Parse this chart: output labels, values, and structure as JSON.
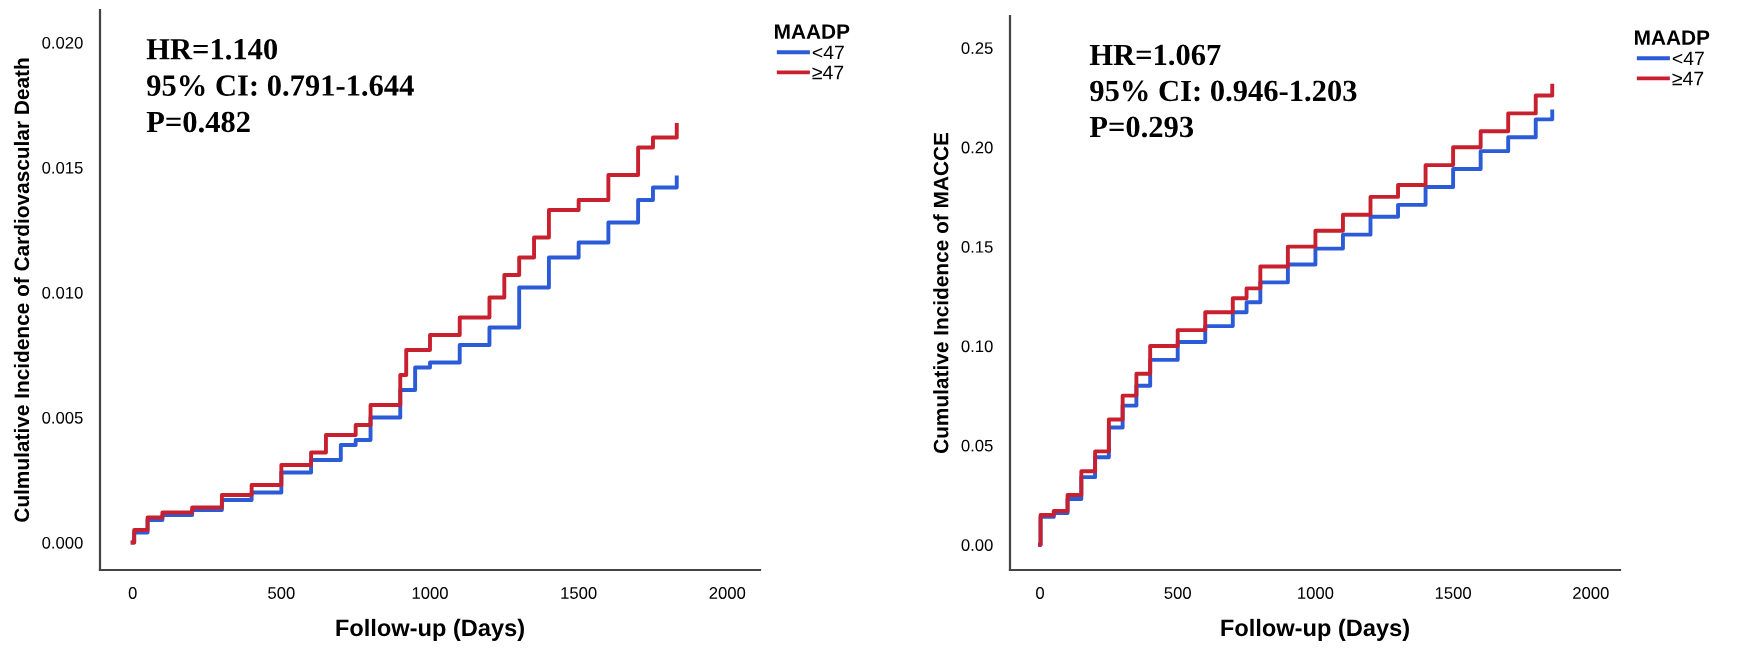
{
  "chart_data": [
    {
      "type": "step",
      "xlabel": "Follow-up (Days)",
      "ylabel": "Culmulative Incidence of Cardiovascular Death",
      "legend_title": "MAADP",
      "legend": "top right",
      "grid": false,
      "annotations": [
        "HR=1.140",
        "95% CI: 0.791-1.644",
        "P=0.482"
      ],
      "xlim": [
        -110,
        2110
      ],
      "xticks": [
        0,
        500,
        1000,
        1500,
        2000
      ],
      "ylim": [
        -0.0011,
        0.0213
      ],
      "yticks": [
        {
          "value": 0,
          "label": "0.000"
        },
        {
          "value": 0.005,
          "label": "0.005"
        },
        {
          "value": 0.01,
          "label": "0.010"
        },
        {
          "value": 0.015,
          "label": "0.015"
        },
        {
          "value": 0.02,
          "label": "0.020"
        }
      ],
      "series": [
        {
          "name": "<47",
          "color": "#2b5bd7",
          "x": [
            0,
            5,
            50,
            100,
            200,
            300,
            400,
            500,
            600,
            700,
            750,
            800,
            900,
            950,
            1000,
            1100,
            1200,
            1300,
            1400,
            1500,
            1600,
            1700,
            1750,
            1830
          ],
          "values": [
            0,
            0.0004,
            0.0009,
            0.0011,
            0.0013,
            0.0017,
            0.002,
            0.0028,
            0.0033,
            0.0039,
            0.0041,
            0.005,
            0.0061,
            0.007,
            0.0072,
            0.0079,
            0.0086,
            0.0102,
            0.0114,
            0.012,
            0.0128,
            0.0137,
            0.0142,
            0.0146
          ]
        },
        {
          "name": "≥47",
          "color": "#c8202f",
          "x": [
            0,
            5,
            50,
            100,
            200,
            300,
            400,
            500,
            600,
            650,
            750,
            800,
            900,
            920,
            1000,
            1100,
            1200,
            1250,
            1300,
            1350,
            1400,
            1500,
            1600,
            1700,
            1750,
            1830
          ],
          "values": [
            0,
            0.0005,
            0.001,
            0.0012,
            0.0014,
            0.0019,
            0.0023,
            0.0031,
            0.0036,
            0.0043,
            0.0047,
            0.0055,
            0.0067,
            0.0077,
            0.0083,
            0.009,
            0.0098,
            0.0107,
            0.0114,
            0.0122,
            0.0133,
            0.0137,
            0.0147,
            0.0158,
            0.0162,
            0.0167
          ]
        }
      ]
    },
    {
      "type": "step",
      "xlabel": "Follow-up (Days)",
      "ylabel": "Cumulative Incidence of MACCE",
      "legend_title": "MAADP",
      "legend": "top right",
      "grid": false,
      "annotations": [
        "HR=1.067",
        "95% CI: 0.946-1.203",
        "P=0.293"
      ],
      "xlim": [
        -109,
        2106
      ],
      "xticks": [
        0,
        500,
        1000,
        1500,
        2000
      ],
      "ylim": [
        -0.0127,
        0.266
      ],
      "yticks": [
        {
          "value": 0,
          "label": "0.00"
        },
        {
          "value": 0.05,
          "label": "0.05"
        },
        {
          "value": 0.1,
          "label": "0.10"
        },
        {
          "value": 0.15,
          "label": "0.15"
        },
        {
          "value": 0.2,
          "label": "0.20"
        },
        {
          "value": 0.25,
          "label": "0.25"
        }
      ],
      "series": [
        {
          "name": "<47",
          "color": "#2b5bd7",
          "x": [
            0,
            2,
            50,
            100,
            150,
            200,
            250,
            300,
            350,
            400,
            500,
            600,
            700,
            750,
            800,
            900,
            1000,
            1100,
            1200,
            1300,
            1400,
            1500,
            1600,
            1700,
            1800,
            1860
          ],
          "values": [
            0,
            0.014,
            0.016,
            0.023,
            0.034,
            0.044,
            0.059,
            0.07,
            0.08,
            0.093,
            0.102,
            0.11,
            0.117,
            0.122,
            0.132,
            0.141,
            0.149,
            0.156,
            0.165,
            0.171,
            0.18,
            0.189,
            0.198,
            0.205,
            0.214,
            0.218
          ]
        },
        {
          "name": "≥47",
          "color": "#c8202f",
          "x": [
            0,
            2,
            50,
            100,
            150,
            200,
            250,
            300,
            350,
            400,
            500,
            600,
            700,
            750,
            800,
            900,
            1000,
            1100,
            1200,
            1300,
            1400,
            1500,
            1600,
            1700,
            1800,
            1860
          ],
          "values": [
            0,
            0.015,
            0.017,
            0.025,
            0.037,
            0.047,
            0.063,
            0.075,
            0.086,
            0.1,
            0.108,
            0.117,
            0.124,
            0.129,
            0.14,
            0.15,
            0.158,
            0.166,
            0.175,
            0.181,
            0.191,
            0.2,
            0.208,
            0.217,
            0.226,
            0.231
          ]
        }
      ]
    }
  ]
}
